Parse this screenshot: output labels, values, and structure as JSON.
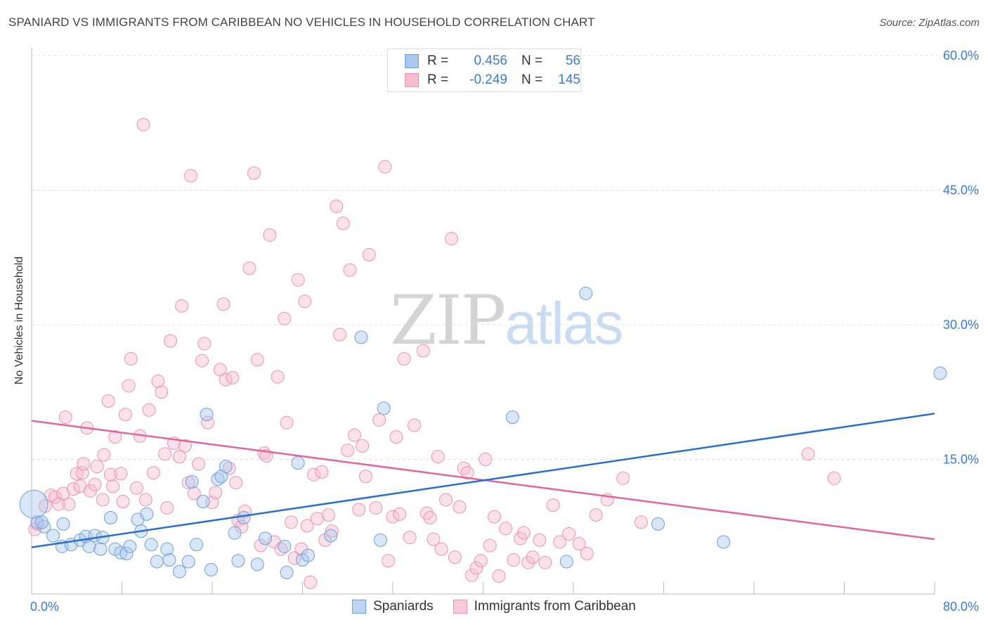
{
  "title": "SPANIARD VS IMMIGRANTS FROM CARIBBEAN NO VEHICLES IN HOUSEHOLD CORRELATION CHART",
  "source": "Source: ZipAtlas.com",
  "watermark": {
    "zip": "ZIP",
    "atlas": "atlas"
  },
  "legend": {
    "r_label": "R =",
    "n_label": "N =",
    "series1": {
      "r": "0.456",
      "n": "56"
    },
    "series2": {
      "r": "-0.249",
      "n": "145"
    }
  },
  "colors": {
    "blue_fill": "#a9c8ee",
    "blue_stroke": "#6f9fd8",
    "blue_line": "#2a6fcf",
    "pink_fill": "#f7bcd0",
    "pink_stroke": "#ec93b1",
    "pink_line": "#e2669a",
    "tick_label": "#3a7bd5",
    "grid": "#dddddd"
  },
  "chart_data": {
    "type": "scatter",
    "ylabel": "No Vehicles in Household",
    "xlim": [
      0,
      80
    ],
    "ylim": [
      0,
      60
    ],
    "x_tick_labels": [
      "0.0%",
      "80.0%"
    ],
    "y_ticks": [
      15,
      30,
      45,
      60
    ],
    "y_tick_labels": [
      "15.0%",
      "30.0%",
      "45.0%",
      "60.0%"
    ],
    "grid": "horizontal dashed",
    "legend_position": "top-center",
    "series": [
      {
        "name": "Spaniards",
        "color": "#6f9fd8",
        "trend": [
          [
            0,
            5.2
          ],
          [
            80,
            20.1
          ]
        ],
        "points": [
          [
            0.2,
            10.0
          ],
          [
            0.5,
            8.0
          ],
          [
            1.1,
            7.5
          ],
          [
            1.9,
            6.5
          ],
          [
            2.8,
            7.8
          ],
          [
            2.7,
            5.3
          ],
          [
            3.5,
            5.5
          ],
          [
            4.3,
            6.0
          ],
          [
            4.8,
            6.4
          ],
          [
            5.1,
            5.3
          ],
          [
            5.6,
            6.5
          ],
          [
            6.1,
            5.0
          ],
          [
            6.3,
            6.3
          ],
          [
            7.0,
            8.5
          ],
          [
            7.4,
            5.0
          ],
          [
            7.9,
            4.6
          ],
          [
            8.4,
            4.5
          ],
          [
            8.7,
            5.3
          ],
          [
            9.4,
            8.3
          ],
          [
            9.7,
            7.0
          ],
          [
            10.2,
            8.9
          ],
          [
            10.6,
            5.5
          ],
          [
            11.1,
            3.6
          ],
          [
            12.0,
            5.0
          ],
          [
            12.2,
            3.8
          ],
          [
            13.1,
            2.5
          ],
          [
            13.9,
            3.6
          ],
          [
            14.2,
            12.5
          ],
          [
            14.6,
            5.5
          ],
          [
            15.2,
            10.3
          ],
          [
            15.5,
            20.0
          ],
          [
            15.9,
            2.7
          ],
          [
            16.5,
            12.8
          ],
          [
            16.8,
            13.1
          ],
          [
            17.2,
            14.2
          ],
          [
            18.0,
            6.8
          ],
          [
            18.3,
            3.7
          ],
          [
            18.8,
            8.5
          ],
          [
            20.0,
            3.3
          ],
          [
            20.7,
            6.2
          ],
          [
            22.4,
            5.3
          ],
          [
            22.6,
            2.4
          ],
          [
            23.6,
            14.6
          ],
          [
            24.0,
            3.8
          ],
          [
            24.5,
            4.3
          ],
          [
            26.5,
            6.5
          ],
          [
            29.2,
            28.6
          ],
          [
            30.9,
            6.0
          ],
          [
            31.2,
            20.7
          ],
          [
            42.6,
            19.7
          ],
          [
            47.4,
            3.6
          ],
          [
            49.1,
            33.5
          ],
          [
            55.5,
            7.8
          ],
          [
            61.3,
            5.8
          ],
          [
            80.5,
            24.6
          ],
          [
            0.9,
            8.0
          ]
        ],
        "sizes_note": "first point drawn larger"
      },
      {
        "name": "Immigrants from Caribbean",
        "color": "#ec93b1",
        "trend": [
          [
            0,
            19.3
          ],
          [
            80,
            6.1
          ]
        ],
        "points": [
          [
            0.3,
            7.2
          ],
          [
            0.5,
            7.8
          ],
          [
            1.2,
            9.8
          ],
          [
            1.7,
            11.0
          ],
          [
            2.1,
            10.8
          ],
          [
            2.4,
            10.0
          ],
          [
            2.8,
            11.2
          ],
          [
            3.0,
            19.7
          ],
          [
            3.3,
            10.0
          ],
          [
            3.7,
            11.7
          ],
          [
            4.0,
            13.4
          ],
          [
            4.3,
            12.0
          ],
          [
            4.5,
            13.5
          ],
          [
            4.6,
            14.5
          ],
          [
            4.9,
            18.5
          ],
          [
            5.2,
            11.5
          ],
          [
            5.6,
            12.2
          ],
          [
            5.8,
            14.2
          ],
          [
            6.3,
            10.5
          ],
          [
            6.4,
            15.5
          ],
          [
            6.8,
            21.5
          ],
          [
            7.0,
            13.3
          ],
          [
            7.2,
            12.0
          ],
          [
            7.4,
            17.5
          ],
          [
            7.9,
            13.4
          ],
          [
            8.1,
            10.3
          ],
          [
            8.3,
            20.0
          ],
          [
            8.6,
            23.2
          ],
          [
            8.8,
            26.2
          ],
          [
            9.3,
            11.8
          ],
          [
            9.6,
            17.6
          ],
          [
            9.9,
            52.3
          ],
          [
            10.1,
            10.5
          ],
          [
            10.4,
            20.5
          ],
          [
            10.8,
            13.5
          ],
          [
            11.2,
            23.7
          ],
          [
            11.5,
            22.5
          ],
          [
            11.8,
            15.6
          ],
          [
            12.0,
            9.6
          ],
          [
            12.3,
            28.2
          ],
          [
            12.6,
            16.8
          ],
          [
            13.1,
            15.3
          ],
          [
            13.3,
            32.1
          ],
          [
            13.6,
            16.5
          ],
          [
            13.9,
            12.4
          ],
          [
            14.1,
            46.6
          ],
          [
            14.4,
            11.2
          ],
          [
            14.8,
            14.5
          ],
          [
            15.1,
            26.0
          ],
          [
            15.3,
            27.9
          ],
          [
            15.6,
            19.1
          ],
          [
            16.0,
            10.2
          ],
          [
            16.3,
            11.3
          ],
          [
            16.7,
            25.0
          ],
          [
            17.0,
            32.3
          ],
          [
            17.2,
            23.9
          ],
          [
            17.5,
            14.0
          ],
          [
            17.8,
            24.1
          ],
          [
            18.1,
            12.4
          ],
          [
            18.3,
            8.2
          ],
          [
            18.6,
            7.5
          ],
          [
            18.9,
            9.2
          ],
          [
            19.3,
            36.3
          ],
          [
            19.7,
            46.9
          ],
          [
            20.0,
            26.1
          ],
          [
            20.3,
            5.4
          ],
          [
            20.6,
            15.7
          ],
          [
            20.8,
            15.4
          ],
          [
            21.1,
            40.0
          ],
          [
            21.5,
            5.8
          ],
          [
            21.8,
            24.2
          ],
          [
            22.1,
            5.0
          ],
          [
            22.4,
            30.7
          ],
          [
            22.6,
            19.1
          ],
          [
            23.0,
            8.0
          ],
          [
            23.3,
            4.0
          ],
          [
            23.6,
            35.0
          ],
          [
            23.9,
            5.0
          ],
          [
            24.2,
            32.6
          ],
          [
            24.4,
            7.6
          ],
          [
            24.7,
            1.3
          ],
          [
            25.0,
            13.3
          ],
          [
            25.3,
            8.4
          ],
          [
            25.7,
            13.6
          ],
          [
            26.0,
            6.0
          ],
          [
            26.3,
            8.8
          ],
          [
            26.6,
            7.0
          ],
          [
            27.0,
            43.2
          ],
          [
            27.3,
            28.9
          ],
          [
            27.6,
            41.3
          ],
          [
            28.0,
            16.0
          ],
          [
            28.2,
            36.1
          ],
          [
            28.6,
            17.7
          ],
          [
            29.0,
            9.4
          ],
          [
            29.3,
            16.5
          ],
          [
            29.6,
            13.1
          ],
          [
            29.9,
            37.8
          ],
          [
            30.5,
            9.6
          ],
          [
            30.8,
            19.4
          ],
          [
            31.3,
            47.6
          ],
          [
            31.6,
            3.7
          ],
          [
            32.0,
            8.6
          ],
          [
            32.3,
            17.5
          ],
          [
            32.6,
            8.9
          ],
          [
            33.0,
            26.2
          ],
          [
            33.5,
            6.3
          ],
          [
            33.9,
            18.8
          ],
          [
            34.7,
            27.1
          ],
          [
            35.0,
            9.0
          ],
          [
            35.3,
            8.5
          ],
          [
            35.6,
            6.1
          ],
          [
            36.0,
            15.3
          ],
          [
            36.3,
            5.0
          ],
          [
            36.7,
            10.5
          ],
          [
            37.2,
            39.6
          ],
          [
            37.5,
            4.1
          ],
          [
            37.9,
            9.7
          ],
          [
            38.3,
            14.0
          ],
          [
            38.6,
            13.5
          ],
          [
            39.0,
            2.1
          ],
          [
            39.4,
            2.9
          ],
          [
            39.8,
            3.7
          ],
          [
            40.2,
            15.0
          ],
          [
            40.6,
            5.4
          ],
          [
            41.0,
            8.6
          ],
          [
            41.4,
            2.0
          ],
          [
            42.0,
            7.3
          ],
          [
            42.7,
            3.8
          ],
          [
            43.3,
            6.2
          ],
          [
            43.6,
            6.8
          ],
          [
            44.0,
            3.5
          ],
          [
            44.4,
            4.1
          ],
          [
            45.0,
            6.0
          ],
          [
            45.5,
            3.5
          ],
          [
            46.2,
            9.9
          ],
          [
            46.8,
            5.8
          ],
          [
            47.6,
            6.7
          ],
          [
            48.5,
            5.6
          ],
          [
            49.2,
            4.5
          ],
          [
            50.0,
            8.8
          ],
          [
            51.0,
            10.5
          ],
          [
            52.4,
            12.9
          ],
          [
            54.0,
            8.0
          ],
          [
            68.8,
            15.6
          ],
          [
            71.1,
            12.9
          ]
        ]
      }
    ]
  },
  "axis_labels": {
    "ylabel": "No Vehicles in Household",
    "xmin": "0.0%",
    "xmax": "80.0%"
  }
}
